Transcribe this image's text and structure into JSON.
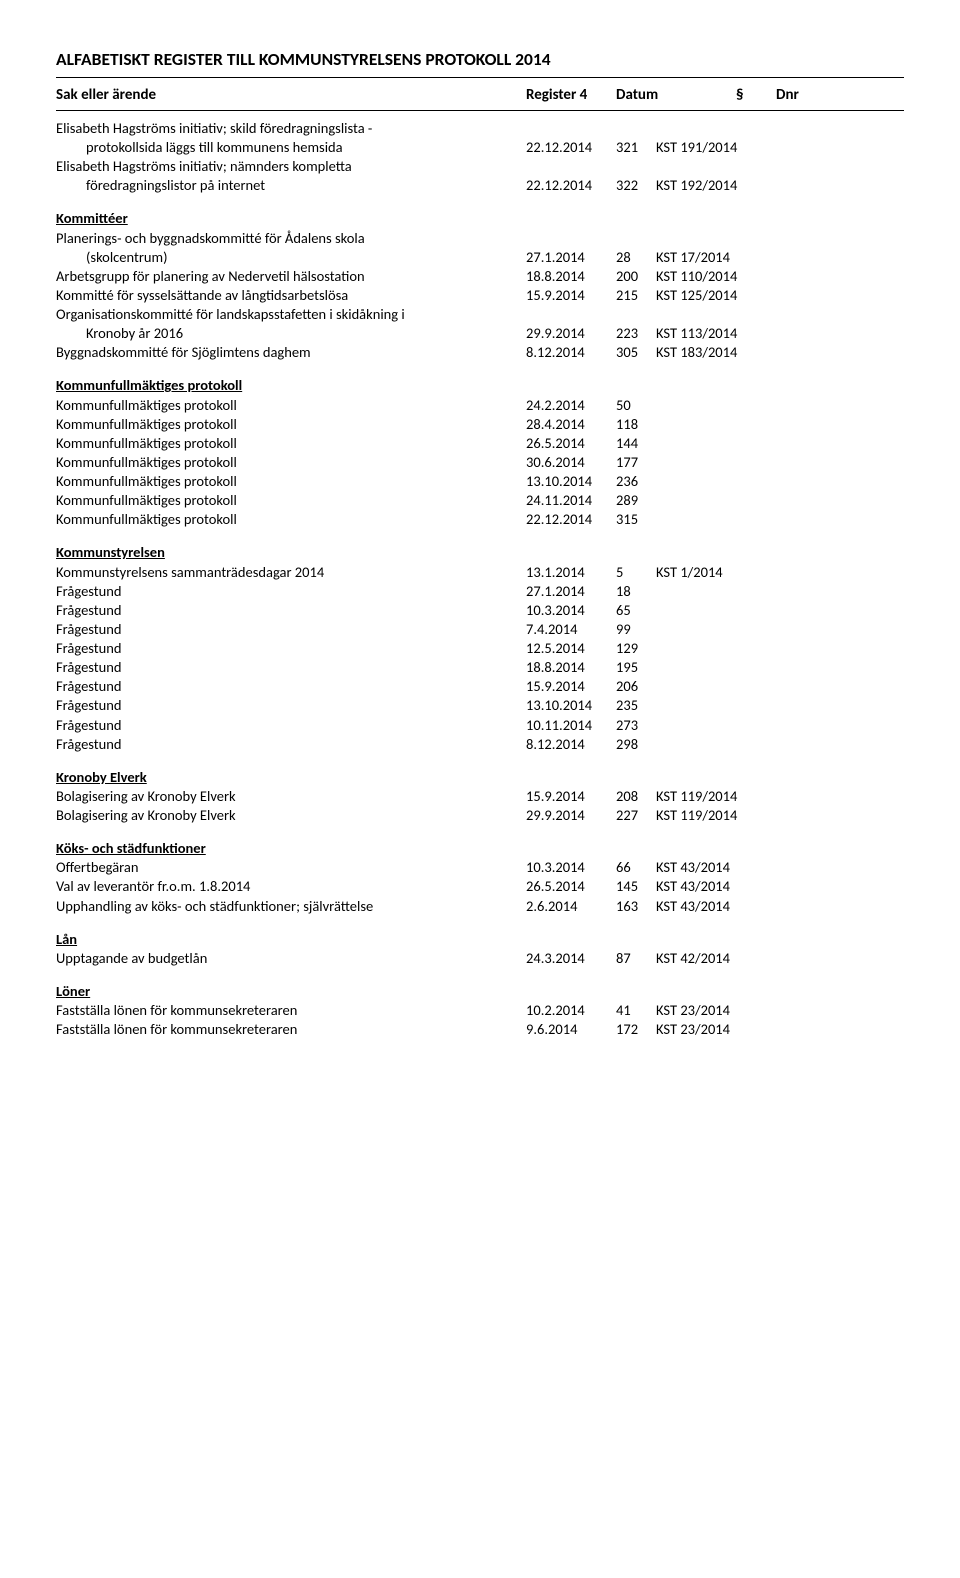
{
  "title": "ALFABETISKT REGISTER TILL KOMMUNSTYRELSENS PROTOKOLL 2014",
  "header": {
    "subject": "Sak eller ärende",
    "register": "Register 4",
    "date": "Datum",
    "para": "§",
    "dnr": "Dnr"
  },
  "preamble": [
    {
      "subject": "Elisabeth Hagströms initiativ; skild föredragningslista -",
      "date": "",
      "para": "",
      "dnr": ""
    },
    {
      "subject": "protokollsida läggs till kommunens hemsida",
      "indent": true,
      "date": "22.12.2014",
      "para": "321",
      "dnr": "KST 191/2014"
    },
    {
      "subject": "Elisabeth Hagströms initiativ; nämnders kompletta",
      "date": "",
      "para": "",
      "dnr": ""
    },
    {
      "subject": "föredragningslistor på internet",
      "indent": true,
      "date": "22.12.2014",
      "para": "322",
      "dnr": "KST 192/2014"
    }
  ],
  "sections": [
    {
      "heading": "Kommittéer",
      "rows": [
        {
          "subject": "Planerings- och byggnadskommitté för Ådalens skola",
          "date": "",
          "para": "",
          "dnr": ""
        },
        {
          "subject": "(skolcentrum)",
          "indent": true,
          "date": "27.1.2014",
          "para": "28",
          "dnr": "KST 17/2014"
        },
        {
          "subject": "Arbetsgrupp för planering av Nedervetil hälsostation",
          "date": "18.8.2014",
          "para": "200",
          "dnr": "KST 110/2014"
        },
        {
          "subject": "Kommitté för sysselsättande av långtidsarbetslösa",
          "date": "15.9.2014",
          "para": "215",
          "dnr": "KST 125/2014"
        },
        {
          "subject": "Organisationskommitté för landskapsstafetten i skidåkning i",
          "date": "",
          "para": "",
          "dnr": ""
        },
        {
          "subject": "Kronoby år 2016",
          "indent": true,
          "date": "29.9.2014",
          "para": "223",
          "dnr": "KST 113/2014"
        },
        {
          "subject": "Byggnadskommitté för Sjöglimtens daghem",
          "date": "8.12.2014",
          "para": "305",
          "dnr": "KST 183/2014"
        }
      ]
    },
    {
      "heading": "Kommunfullmäktiges protokoll",
      "rows": [
        {
          "subject": "Kommunfullmäktiges protokoll",
          "date": "24.2.2014",
          "para": "50",
          "dnr": ""
        },
        {
          "subject": "Kommunfullmäktiges protokoll",
          "date": "28.4.2014",
          "para": "118",
          "dnr": ""
        },
        {
          "subject": "Kommunfullmäktiges protokoll",
          "date": "26.5.2014",
          "para": "144",
          "dnr": ""
        },
        {
          "subject": "Kommunfullmäktiges protokoll",
          "date": "30.6.2014",
          "para": "177",
          "dnr": ""
        },
        {
          "subject": "Kommunfullmäktiges protokoll",
          "date": "13.10.2014",
          "para": "236",
          "dnr": ""
        },
        {
          "subject": "Kommunfullmäktiges protokoll",
          "date": "24.11.2014",
          "para": "289",
          "dnr": ""
        },
        {
          "subject": "Kommunfullmäktiges protokoll",
          "date": "22.12.2014",
          "para": "315",
          "dnr": ""
        }
      ]
    },
    {
      "heading": "Kommunstyrelsen",
      "rows": [
        {
          "subject": "Kommunstyrelsens sammanträdesdagar 2014",
          "date": "13.1.2014",
          "para": "5",
          "dnr": "KST 1/2014"
        },
        {
          "subject": "Frågestund",
          "date": "27.1.2014",
          "para": "18",
          "dnr": ""
        },
        {
          "subject": "Frågestund",
          "date": "10.3.2014",
          "para": "65",
          "dnr": ""
        },
        {
          "subject": "Frågestund",
          "date": "7.4.2014",
          "para": "99",
          "dnr": ""
        },
        {
          "subject": "Frågestund",
          "date": "12.5.2014",
          "para": "129",
          "dnr": ""
        },
        {
          "subject": "Frågestund",
          "date": "18.8.2014",
          "para": "195",
          "dnr": ""
        },
        {
          "subject": "Frågestund",
          "date": "15.9.2014",
          "para": "206",
          "dnr": ""
        },
        {
          "subject": "Frågestund",
          "date": "13.10.2014",
          "para": "235",
          "dnr": ""
        },
        {
          "subject": "Frågestund",
          "date": "10.11.2014",
          "para": "273",
          "dnr": ""
        },
        {
          "subject": "Frågestund",
          "date": "8.12.2014",
          "para": "298",
          "dnr": ""
        }
      ]
    },
    {
      "heading": "Kronoby Elverk",
      "rows": [
        {
          "subject": "Bolagisering av Kronoby Elverk",
          "date": "15.9.2014",
          "para": "208",
          "dnr": "KST 119/2014"
        },
        {
          "subject": "Bolagisering av Kronoby Elverk",
          "date": "29.9.2014",
          "para": "227",
          "dnr": "KST 119/2014"
        }
      ]
    },
    {
      "heading": "Köks- och städfunktioner",
      "rows": [
        {
          "subject": "Offertbegäran",
          "date": "10.3.2014",
          "para": "66",
          "dnr": "KST 43/2014"
        },
        {
          "subject": "Val av leverantör fr.o.m. 1.8.2014",
          "date": "26.5.2014",
          "para": "145",
          "dnr": "KST 43/2014"
        },
        {
          "subject": "Upphandling av köks- och städfunktioner; självrättelse",
          "date": "2.6.2014",
          "para": "163",
          "dnr": "KST 43/2014"
        }
      ]
    },
    {
      "heading": "Lån",
      "rows": [
        {
          "subject": "Upptagande av budgetlån",
          "date": "24.3.2014",
          "para": "87",
          "dnr": "KST 42/2014"
        }
      ]
    },
    {
      "heading": "Löner",
      "rows": [
        {
          "subject": "Fastställa lönen för kommunsekreteraren",
          "date": "10.2.2014",
          "para": "41",
          "dnr": "KST 23/2014"
        },
        {
          "subject": "Fastställa lönen för kommunsekreteraren",
          "date": "9.6.2014",
          "para": "172",
          "dnr": "KST 23/2014"
        }
      ]
    }
  ]
}
